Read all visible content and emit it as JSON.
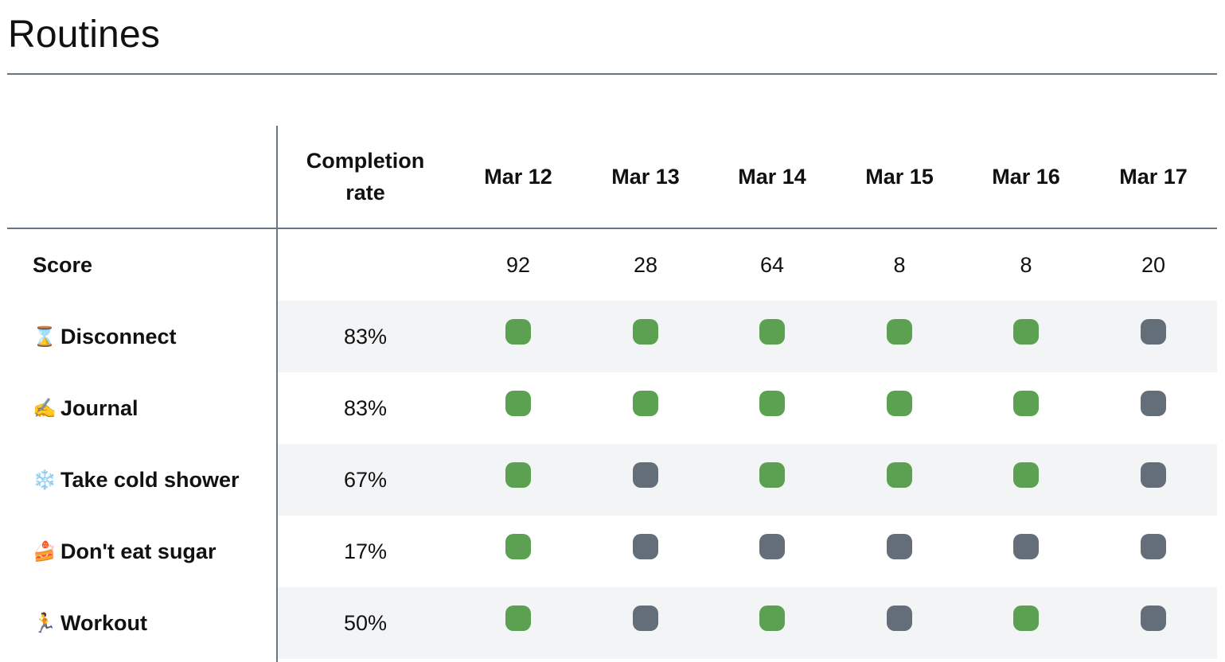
{
  "page": {
    "title": "Routines"
  },
  "colors": {
    "done": "#5ba151",
    "missed": "#646e78",
    "rule": "#6b7580",
    "shade": "#f3f4f6"
  },
  "table": {
    "header": {
      "completion": "Completion rate",
      "dates": [
        "Mar 12",
        "Mar 13",
        "Mar 14",
        "Mar 15",
        "Mar 16",
        "Mar 17"
      ]
    },
    "score": {
      "label": "Score",
      "values": [
        "92",
        "28",
        "64",
        "8",
        "8",
        "20"
      ]
    },
    "routines": [
      {
        "icon": "hourglass-icon",
        "emoji": "⌛",
        "name": "Disconnect",
        "rate": "83%",
        "days": [
          true,
          true,
          true,
          true,
          true,
          false
        ]
      },
      {
        "icon": "writing-hand-icon",
        "emoji": "✍️",
        "name": "Journal",
        "rate": "83%",
        "days": [
          true,
          true,
          true,
          true,
          true,
          false
        ]
      },
      {
        "icon": "snowflake-icon",
        "emoji": "❄️",
        "name": "Take cold shower",
        "rate": "67%",
        "days": [
          true,
          false,
          true,
          true,
          true,
          false
        ]
      },
      {
        "icon": "cake-icon",
        "emoji": "🍰",
        "name": "Don't eat sugar",
        "rate": "17%",
        "days": [
          true,
          false,
          false,
          false,
          false,
          false
        ]
      },
      {
        "icon": "runner-icon",
        "emoji": "🏃",
        "name": "Workout",
        "rate": "50%",
        "days": [
          true,
          false,
          true,
          false,
          true,
          false
        ]
      }
    ]
  }
}
